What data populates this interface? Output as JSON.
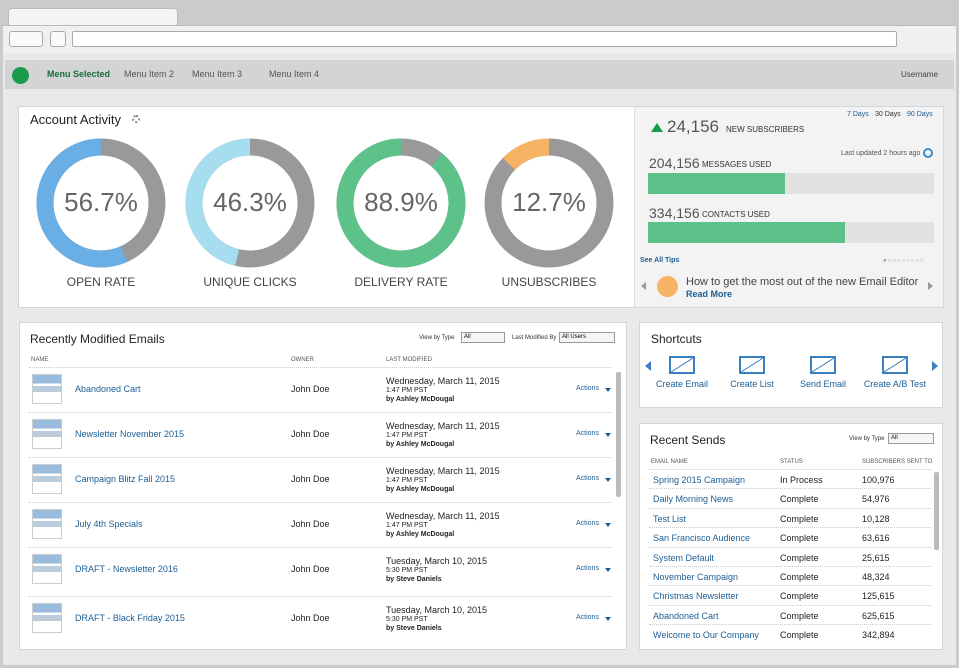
{
  "nav": {
    "items": [
      "Menu Selected",
      "Menu Item 2",
      "Menu Item 3",
      "Menu Item 4"
    ],
    "user": "Username"
  },
  "activity": {
    "title": "Account Activity",
    "gauges": [
      {
        "label": "OPEN RATE",
        "value": 56.7,
        "value_label": "56.7%",
        "color": "#6aaee6"
      },
      {
        "label": "UNIQUE CLICKS",
        "value": 46.3,
        "value_label": "46.3%",
        "color": "#a6def0"
      },
      {
        "label": "DELIVERY RATE",
        "value": 88.9,
        "value_label": "88.9%",
        "color": "#5cc28a"
      },
      {
        "label": "UNSUBSCRIBES",
        "value": 12.7,
        "value_label": "12.7%",
        "color": "#f5b363"
      }
    ]
  },
  "stats": {
    "ranges": [
      "7 Days",
      "30 Days",
      "90 Days"
    ],
    "new_subscribers": {
      "value": "24,156",
      "label": "NEW SUBSCRIBERS"
    },
    "updated": "Last updated 2 hours ago",
    "messages": {
      "value": "204,156",
      "label": "MESSAGES USED",
      "fill": 48
    },
    "contacts": {
      "value": "334,156",
      "label": "CONTACTS USED",
      "fill": 69
    },
    "tips_link": "See All Tips",
    "tip": "How to get the most out of the new Email Editor",
    "tip_link": "Read More"
  },
  "emails": {
    "title": "Recently Modified Emails",
    "filters": [
      {
        "label": "View by Type",
        "value": "All"
      },
      {
        "label": "Last Modified By",
        "value": "All Users"
      }
    ],
    "columns": [
      "NAME",
      "OWNER",
      "LAST MODIFIED"
    ],
    "rows": [
      {
        "name": "Abandoned Cart",
        "owner": "John Doe",
        "date": "Wednesday, March 11, 2015",
        "time": "1:47 PM PST",
        "by": "by Ashley McDougal",
        "action": "Actions"
      },
      {
        "name": "Newsletter November 2015",
        "owner": "John Doe",
        "date": "Wednesday, March 11, 2015",
        "time": "1:47 PM PST",
        "by": "by Ashley McDougal",
        "action": "Actions"
      },
      {
        "name": "Campaign Blitz Fall 2015",
        "owner": "John Doe",
        "date": "Wednesday, March 11, 2015",
        "time": "1:47 PM PST",
        "by": "by Ashley McDougal",
        "action": "Actions"
      },
      {
        "name": "July 4th Specials",
        "owner": "John Doe",
        "date": "Wednesday, March 11, 2015",
        "time": "1:47 PM PST",
        "by": "by Ashley McDougal",
        "action": "Actions"
      },
      {
        "name": "DRAFT - Newsletter 2016",
        "owner": "John Doe",
        "date": "Tuesday, March 10, 2015",
        "time": "5:30 PM PST",
        "by": "by Steve Daniels",
        "action": "Actions"
      },
      {
        "name": "DRAFT - Black Friday 2015",
        "owner": "John Doe",
        "date": "Tuesday, March 10, 2015",
        "time": "5:30 PM PST",
        "by": "by Steve Daniels",
        "action": "Actions"
      }
    ]
  },
  "shortcuts": {
    "title": "Shortcuts",
    "items": [
      "Create Email",
      "Create List",
      "Send Email",
      "Create A/B Test"
    ]
  },
  "sends": {
    "title": "Recent Sends",
    "filter": {
      "label": "View by Type",
      "value": "All"
    },
    "columns": [
      "EMAIL NAME",
      "STATUS",
      "SUBSCRIBERS SENT TO"
    ],
    "rows": [
      [
        "Spring 2015 Campaign",
        "In Process",
        "100,976"
      ],
      [
        "Daily Morning News",
        "Complete",
        "54,976"
      ],
      [
        "Test List",
        "Complete",
        "10,128"
      ],
      [
        "San Francisco Audience",
        "Complete",
        "63,616"
      ],
      [
        "System Default",
        "Complete",
        "25,615"
      ],
      [
        "November Campaign",
        "Complete",
        "48,324"
      ],
      [
        "Christmas Newsletter",
        "Complete",
        "125,615"
      ],
      [
        "Abandoned Cart",
        "Complete",
        "625,615"
      ],
      [
        "Welcome to Our Company",
        "Complete",
        "342,894"
      ]
    ]
  }
}
